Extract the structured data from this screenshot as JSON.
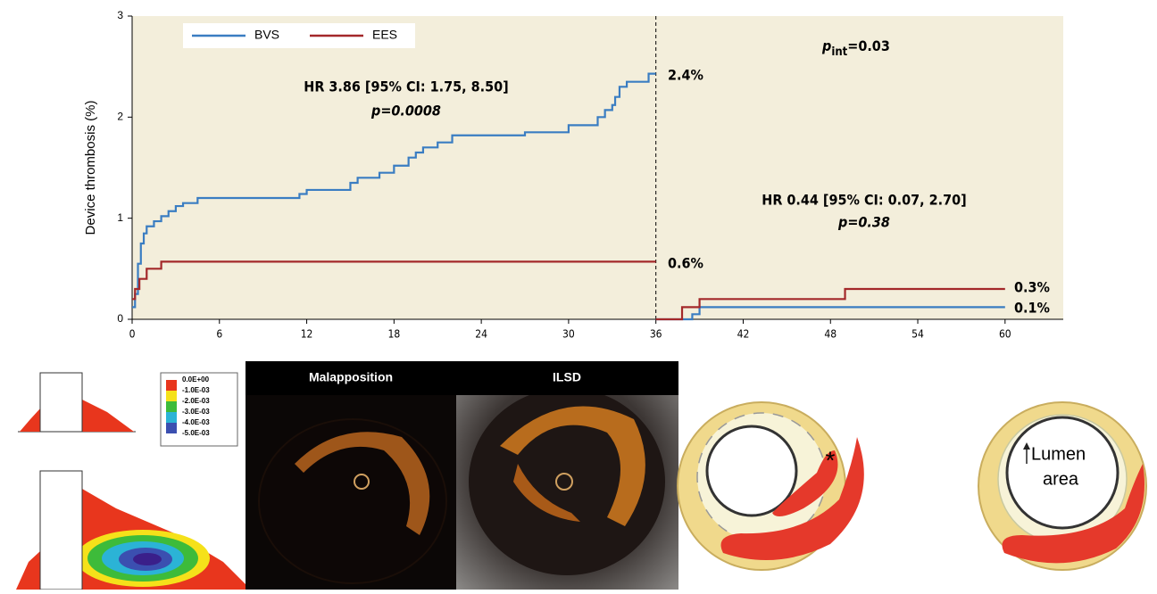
{
  "chart_data": {
    "type": "line",
    "y_label": "Device thrombosis (%)",
    "xlim": [
      0,
      64
    ],
    "ylim": [
      0,
      3
    ],
    "xticks": [
      0,
      6,
      12,
      18,
      24,
      30,
      36,
      42,
      48,
      54,
      60
    ],
    "yticks": [
      0,
      1,
      2,
      3
    ],
    "landmark": 36,
    "legend": "top-left",
    "series": [
      {
        "name": "BVS",
        "color": "#3a7dc2",
        "x": [
          0,
          0.2,
          0.4,
          0.6,
          0.8,
          1.0,
          1.5,
          2.0,
          2.5,
          3.0,
          3.5,
          4.5,
          11.5,
          12,
          15,
          15.5,
          17,
          18,
          19,
          19.5,
          20,
          21,
          22,
          27,
          30,
          32,
          32.5,
          33,
          33.2,
          33.5,
          34,
          35.5,
          36,
          null,
          36,
          38.5,
          39,
          60
        ],
        "values": [
          0.12,
          0.25,
          0.55,
          0.75,
          0.85,
          0.92,
          0.97,
          1.02,
          1.07,
          1.12,
          1.15,
          1.2,
          1.24,
          1.28,
          1.35,
          1.4,
          1.45,
          1.52,
          1.6,
          1.65,
          1.7,
          1.75,
          1.82,
          1.85,
          1.92,
          2.0,
          2.07,
          2.12,
          2.2,
          2.3,
          2.35,
          2.43,
          2.43,
          null,
          0,
          0.05,
          0.12,
          0.12
        ]
      },
      {
        "name": "EES",
        "color": "#a3282a",
        "x": [
          0,
          0.2,
          0.5,
          1,
          2,
          36,
          null,
          36,
          37.8,
          39,
          49,
          60
        ],
        "values": [
          0.2,
          0.3,
          0.4,
          0.5,
          0.57,
          0.57,
          null,
          0,
          0.12,
          0.2,
          0.3,
          0.3
        ]
      }
    ],
    "annotations": {
      "hr1": "HR 3.86 [95% CI: 1.75, 8.50]",
      "p1": "p=0.0008",
      "hr2": "HR 0.44 [95% CI: 0.07, 2.70]",
      "p2": "p=0.38",
      "pint": [
        "p",
        "int",
        "=0.03"
      ],
      "end_bvs1": "2.4%",
      "end_ees1": "0.6%",
      "end_ees2": "0.3%",
      "end_bvs2": "0.1%"
    }
  },
  "panels": {
    "colorbar": [
      "0.0E+00",
      "-1.0E-03",
      "-2.0E-03",
      "-3.0E-03",
      "-4.0E-03",
      "-5.0E-03"
    ],
    "oct_titles": [
      "Malapposition",
      "ILSD"
    ],
    "asterisk": "*",
    "lumen": [
      "Lumen",
      "area"
    ]
  }
}
